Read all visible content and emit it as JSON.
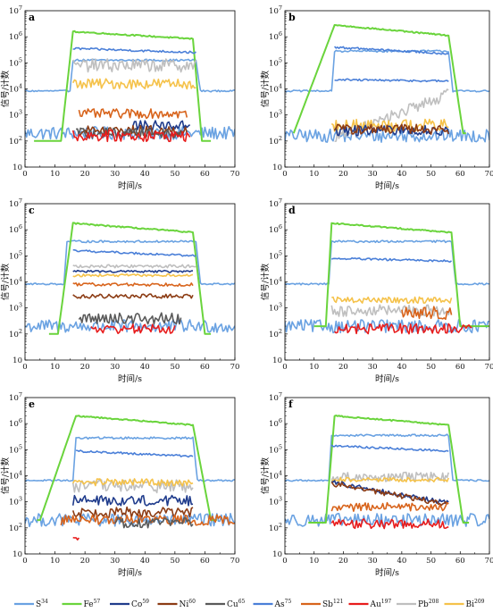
{
  "chart_data": {
    "type": "line",
    "xlabel": "时间/s",
    "ylabel": "信号/计数",
    "xlim": [
      0,
      70
    ],
    "xticks": [
      "0",
      "10",
      "20",
      "30",
      "40",
      "50",
      "60",
      "70"
    ],
    "ylim_log10": [
      1,
      7
    ],
    "y_scale": "log",
    "yticks": [
      "10",
      "10²",
      "10³",
      "10⁴",
      "10⁵",
      "10⁶",
      "10⁷"
    ],
    "grid": false,
    "legend_position": "bottom",
    "legend": [
      {
        "base": "S",
        "iso": "34",
        "color": "#6aa2e2"
      },
      {
        "base": "Fe",
        "iso": "57",
        "color": "#6ad43c"
      },
      {
        "base": "Co",
        "iso": "59",
        "color": "#203c8c"
      },
      {
        "base": "Ni",
        "iso": "60",
        "color": "#8c3c14"
      },
      {
        "base": "Cu",
        "iso": "65",
        "color": "#5a5a5a"
      },
      {
        "base": "As",
        "iso": "75",
        "color": "#4a7fd8"
      },
      {
        "base": "Sb",
        "iso": "121",
        "color": "#d8641c"
      },
      {
        "base": "Au",
        "iso": "197",
        "color": "#e81c1c"
      },
      {
        "base": "Pb",
        "iso": "208",
        "color": "#bfbfbf"
      },
      {
        "base": "Bi",
        "iso": "209",
        "color": "#f5c24a"
      }
    ],
    "panels": [
      {
        "label": "a",
        "series": [
          {
            "name": "S34",
            "type": "bg",
            "start": 0,
            "end": 70,
            "level": 2.3,
            "noise": 0.25
          },
          {
            "name": "S34",
            "type": "step",
            "start": 0,
            "end": 70,
            "outer": 3.92,
            "level": 5.1,
            "t0": 16,
            "t1": 57,
            "noise": 0.04
          },
          {
            "name": "Fe57",
            "type": "trap",
            "start": 3,
            "end": 62,
            "base": 2.0,
            "r0": 12,
            "r1": 16,
            "top": 6.2,
            "top_end": 5.92,
            "d0": 56,
            "d1": 59,
            "noise": 0.025
          },
          {
            "name": "As75",
            "type": "plateau",
            "start": 16,
            "end": 57,
            "level": 5.55,
            "level_end": 5.4,
            "noise": 0.04
          },
          {
            "name": "Pb208",
            "type": "noisy",
            "start": 16,
            "end": 57,
            "level": 4.9,
            "noise": 0.25
          },
          {
            "name": "Bi209",
            "type": "noisy",
            "start": 16,
            "end": 57,
            "level": 4.2,
            "noise": 0.2
          },
          {
            "name": "Sb121",
            "type": "noisy",
            "start": 18,
            "end": 54,
            "level": 3.05,
            "noise": 0.18
          },
          {
            "name": "Co59",
            "type": "noisy",
            "start": 36,
            "end": 55,
            "level": 2.6,
            "noise": 0.18
          },
          {
            "name": "Ni60",
            "type": "noisy",
            "start": 18,
            "end": 54,
            "level": 2.4,
            "noise": 0.2
          },
          {
            "name": "Cu65",
            "type": "noisy",
            "start": 17,
            "end": 52,
            "level": 2.3,
            "noise": 0.2
          },
          {
            "name": "Au197",
            "type": "noisy",
            "start": 16,
            "end": 55,
            "level": 2.2,
            "noise": 0.22
          }
        ]
      },
      {
        "label": "b",
        "series": [
          {
            "name": "S34",
            "type": "bg",
            "start": 0,
            "end": 70,
            "level": 2.2,
            "noise": 0.25
          },
          {
            "name": "S34",
            "type": "step",
            "start": 0,
            "end": 70,
            "outer": 3.92,
            "level": 5.45,
            "t0": 17,
            "t1": 56,
            "noise": 0.04
          },
          {
            "name": "Fe57",
            "type": "trap",
            "start": 3,
            "end": 62,
            "base": 2.3,
            "r0": 3,
            "r1": 17,
            "top": 6.45,
            "top_end": 6.05,
            "d0": 56,
            "d1": 61,
            "noise": 0.025
          },
          {
            "name": "As75",
            "type": "plateau",
            "start": 17,
            "end": 56,
            "level": 5.6,
            "level_end": 5.35,
            "noise": 0.04
          },
          {
            "name": "As75",
            "type": "plateau",
            "start": 17,
            "end": 56,
            "level": 4.35,
            "level_end": 4.3,
            "noise": 0.04
          },
          {
            "name": "Pb208",
            "type": "ramp",
            "start": 17,
            "end": 56,
            "from": 2.1,
            "to": 3.8,
            "noise": 0.22
          },
          {
            "name": "Bi209",
            "type": "noisy",
            "start": 16,
            "end": 56,
            "level": 2.6,
            "noise": 0.25
          },
          {
            "name": "Co59",
            "type": "noisy",
            "start": 17,
            "end": 56,
            "level": 2.4,
            "noise": 0.2
          },
          {
            "name": "Ni60",
            "type": "noisy",
            "start": 17,
            "end": 56,
            "level": 2.45,
            "noise": 0.2
          }
        ]
      },
      {
        "label": "c",
        "series": [
          {
            "name": "S34",
            "type": "bg",
            "start": 0,
            "end": 70,
            "level": 2.3,
            "noise": 0.25
          },
          {
            "name": "S34",
            "type": "step",
            "start": 0,
            "end": 70,
            "outer": 3.92,
            "level": 5.55,
            "t0": 14,
            "t1": 57,
            "noise": 0.04
          },
          {
            "name": "Fe57",
            "type": "trap",
            "start": 8,
            "end": 62,
            "base": 2.0,
            "r0": 11,
            "r1": 16,
            "top": 6.25,
            "top_end": 5.9,
            "d0": 56,
            "d1": 60,
            "noise": 0.025
          },
          {
            "name": "As75",
            "type": "plateau",
            "start": 16,
            "end": 57,
            "level": 5.2,
            "level_end": 5.0,
            "noise": 0.04
          },
          {
            "name": "Pb208",
            "type": "noisy",
            "start": 16,
            "end": 57,
            "level": 4.6,
            "noise": 0.06
          },
          {
            "name": "Bi209",
            "type": "noisy",
            "start": 16,
            "end": 56,
            "level": 4.25,
            "noise": 0.05
          },
          {
            "name": "Sb121",
            "type": "noisy",
            "start": 16,
            "end": 56,
            "level": 3.9,
            "noise": 0.06
          },
          {
            "name": "Co59",
            "type": "noisy",
            "start": 16,
            "end": 56,
            "level": 4.4,
            "noise": 0.04
          },
          {
            "name": "Ni60",
            "type": "noisy",
            "start": 16,
            "end": 56,
            "level": 3.45,
            "noise": 0.08
          },
          {
            "name": "Cu65",
            "type": "noisy",
            "start": 18,
            "end": 52,
            "level": 2.6,
            "noise": 0.22
          },
          {
            "name": "Au197",
            "type": "noisy",
            "start": 22,
            "end": 50,
            "level": 2.2,
            "noise": 0.18
          }
        ]
      },
      {
        "label": "d",
        "series": [
          {
            "name": "S34",
            "type": "bg",
            "start": 0,
            "end": 70,
            "level": 2.3,
            "noise": 0.25
          },
          {
            "name": "S34",
            "type": "step",
            "start": 0,
            "end": 70,
            "outer": 3.92,
            "level": 5.55,
            "t0": 16,
            "t1": 57,
            "noise": 0.04
          },
          {
            "name": "Fe57",
            "type": "trap",
            "start": 10,
            "end": 70,
            "base": 2.3,
            "r0": 14,
            "r1": 16,
            "top": 6.25,
            "top_end": 5.9,
            "d0": 57,
            "d1": 60,
            "noise": 0.025
          },
          {
            "name": "As75",
            "type": "plateau",
            "start": 16,
            "end": 57,
            "level": 4.9,
            "level_end": 4.8,
            "noise": 0.04
          },
          {
            "name": "Pb208",
            "type": "noisy",
            "start": 16,
            "end": 57,
            "level": 2.9,
            "noise": 0.22
          },
          {
            "name": "Bi209",
            "type": "noisy",
            "start": 16,
            "end": 57,
            "level": 3.3,
            "noise": 0.12
          },
          {
            "name": "Sb121",
            "type": "noisy",
            "start": 40,
            "end": 57,
            "level": 2.8,
            "noise": 0.25
          },
          {
            "name": "Au197",
            "type": "noisy",
            "start": 17,
            "end": 64,
            "level": 2.2,
            "noise": 0.2
          }
        ]
      },
      {
        "label": "e",
        "series": [
          {
            "name": "S34",
            "type": "bg",
            "start": 0,
            "end": 70,
            "level": 2.3,
            "noise": 0.25
          },
          {
            "name": "S34",
            "type": "step",
            "start": 0,
            "end": 70,
            "outer": 3.82,
            "level": 5.45,
            "t0": 17,
            "t1": 56,
            "noise": 0.04
          },
          {
            "name": "Fe57",
            "type": "trap",
            "start": 4,
            "end": 64,
            "base": 2.3,
            "r0": 5,
            "r1": 17,
            "top": 6.3,
            "top_end": 5.95,
            "d0": 56,
            "d1": 62,
            "noise": 0.025
          },
          {
            "name": "As75",
            "type": "plateau",
            "start": 17,
            "end": 56,
            "level": 4.95,
            "level_end": 4.75,
            "noise": 0.04
          },
          {
            "name": "Pb208",
            "type": "noisy",
            "start": 16,
            "end": 56,
            "level": 3.6,
            "noise": 0.25
          },
          {
            "name": "Bi209",
            "type": "noisy",
            "start": 16,
            "end": 56,
            "level": 3.75,
            "noise": 0.14
          },
          {
            "name": "Co59",
            "type": "noisy",
            "start": 16,
            "end": 56,
            "level": 3.05,
            "noise": 0.2
          },
          {
            "name": "Ni60",
            "type": "noisy",
            "start": 16,
            "end": 56,
            "level": 2.6,
            "noise": 0.2
          },
          {
            "name": "Sb121",
            "type": "noisy",
            "start": 12,
            "end": 70,
            "level": 2.3,
            "noise": 0.2
          },
          {
            "name": "Cu65",
            "type": "noisy",
            "start": 30,
            "end": 56,
            "level": 2.2,
            "noise": 0.2
          },
          {
            "name": "Au197",
            "type": "noisy",
            "start": 16,
            "end": 18,
            "level": 1.6,
            "noise": 0.1
          }
        ]
      },
      {
        "label": "f",
        "series": [
          {
            "name": "S34",
            "type": "bg",
            "start": 0,
            "end": 70,
            "level": 2.3,
            "noise": 0.25
          },
          {
            "name": "S34",
            "type": "step",
            "start": 0,
            "end": 70,
            "outer": 3.82,
            "level": 5.55,
            "t0": 16,
            "t1": 56,
            "noise": 0.04
          },
          {
            "name": "Fe57",
            "type": "trap",
            "start": 8,
            "end": 63,
            "base": 2.2,
            "r0": 14,
            "r1": 17,
            "top": 6.3,
            "top_end": 5.95,
            "d0": 56,
            "d1": 61,
            "noise": 0.025
          },
          {
            "name": "As75",
            "type": "plateau",
            "start": 16,
            "end": 56,
            "level": 5.15,
            "level_end": 4.95,
            "noise": 0.04
          },
          {
            "name": "Pb208",
            "type": "noisy",
            "start": 16,
            "end": 56,
            "level": 3.95,
            "noise": 0.18
          },
          {
            "name": "Bi209",
            "type": "noisy",
            "start": 16,
            "end": 56,
            "level": 3.85,
            "noise": 0.08
          },
          {
            "name": "Co59",
            "type": "ramp",
            "start": 16,
            "end": 56,
            "from": 3.75,
            "to": 2.95,
            "noise": 0.09
          },
          {
            "name": "Ni60",
            "type": "ramp",
            "start": 16,
            "end": 56,
            "from": 3.7,
            "to": 2.9,
            "noise": 0.1
          },
          {
            "name": "Sb121",
            "type": "noisy",
            "start": 16,
            "end": 56,
            "level": 2.8,
            "noise": 0.17
          },
          {
            "name": "Au197",
            "type": "noisy",
            "start": 16,
            "end": 56,
            "level": 2.15,
            "noise": 0.2
          }
        ]
      }
    ]
  }
}
